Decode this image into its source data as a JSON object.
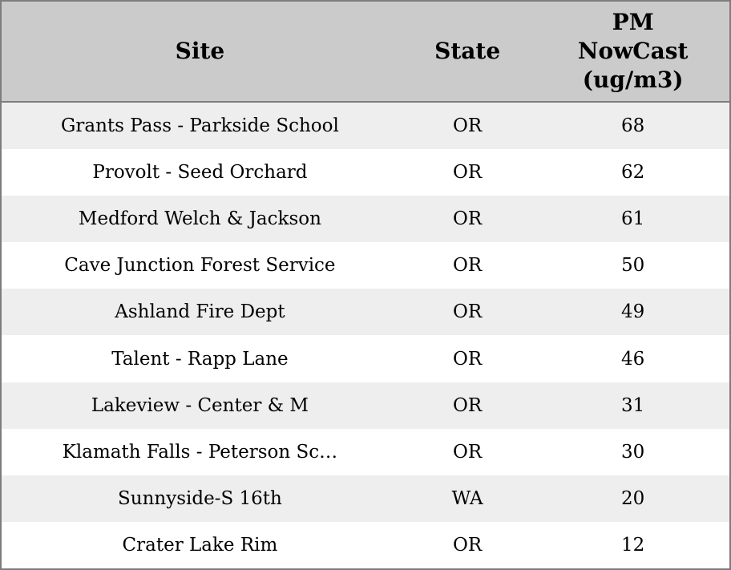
{
  "colors": {
    "header_bg": "#cbcbcb",
    "row_bg": "#ffffff",
    "row_alt_bg": "#eeeeee",
    "border": "#7d7d7d",
    "text": "#000000"
  },
  "table": {
    "columns": [
      {
        "key": "site",
        "label": "Site"
      },
      {
        "key": "state",
        "label": "State"
      },
      {
        "key": "pm",
        "label": "PM NowCast (ug/m3)"
      }
    ],
    "rows": [
      {
        "site": "Grants Pass - Parkside School",
        "state": "OR",
        "pm": "68"
      },
      {
        "site": "Provolt - Seed Orchard",
        "state": "OR",
        "pm": "62"
      },
      {
        "site": "Medford Welch & Jackson",
        "state": "OR",
        "pm": "61"
      },
      {
        "site": "Cave Junction Forest Service",
        "state": "OR",
        "pm": "50"
      },
      {
        "site": "Ashland Fire Dept",
        "state": "OR",
        "pm": "49"
      },
      {
        "site": "Talent - Rapp Lane",
        "state": "OR",
        "pm": "46"
      },
      {
        "site": "Lakeview - Center & M",
        "state": "OR",
        "pm": "31"
      },
      {
        "site": "Klamath Falls - Peterson Sc…",
        "state": "OR",
        "pm": "30"
      },
      {
        "site": "Sunnyside-S 16th",
        "state": "WA",
        "pm": "20"
      },
      {
        "site": "Crater Lake Rim",
        "state": "OR",
        "pm": "12"
      }
    ]
  },
  "chart_data": {
    "type": "table",
    "title": "",
    "columns": [
      "Site",
      "State",
      "PM NowCast (ug/m3)"
    ],
    "rows": [
      [
        "Grants Pass - Parkside School",
        "OR",
        68
      ],
      [
        "Provolt - Seed Orchard",
        "OR",
        62
      ],
      [
        "Medford Welch & Jackson",
        "OR",
        61
      ],
      [
        "Cave Junction Forest Service",
        "OR",
        50
      ],
      [
        "Ashland Fire Dept",
        "OR",
        49
      ],
      [
        "Talent - Rapp Lane",
        "OR",
        46
      ],
      [
        "Lakeview - Center & M",
        "OR",
        31
      ],
      [
        "Klamath Falls - Peterson Sc…",
        "OR",
        30
      ],
      [
        "Sunnyside-S 16th",
        "WA",
        20
      ],
      [
        "Crater Lake Rim",
        "OR",
        12
      ]
    ]
  }
}
